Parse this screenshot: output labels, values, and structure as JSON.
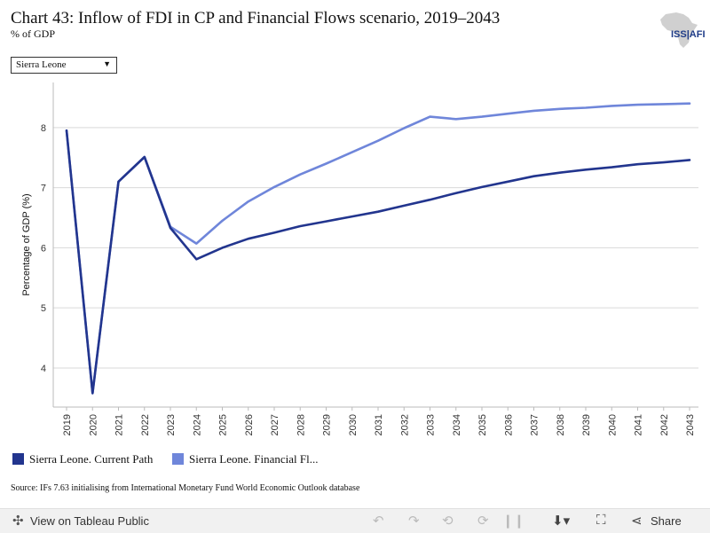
{
  "header": {
    "title": "Chart 43: Inflow of FDI in CP and Financial Flows scenario, 2019–2043",
    "subtitle": "% of GDP",
    "logo_text": "ISS|AFI"
  },
  "filter": {
    "selected": "Sierra Leone",
    "arrow_icon": "▼"
  },
  "chart_data": {
    "type": "line",
    "x": [
      2019,
      2020,
      2021,
      2022,
      2023,
      2024,
      2025,
      2026,
      2027,
      2028,
      2029,
      2030,
      2031,
      2032,
      2033,
      2034,
      2035,
      2036,
      2037,
      2038,
      2039,
      2040,
      2041,
      2042,
      2043
    ],
    "ylabel": "Percentage of GDP (%)",
    "xlabel": "",
    "ylim": [
      3.35,
      8.75
    ],
    "yticks": [
      4,
      5,
      6,
      7,
      8
    ],
    "grid": "horizontal",
    "legend_position": "bottom",
    "series": [
      {
        "name": "Sierra Leone. Current Path",
        "color": "#22358e",
        "values": [
          7.95,
          3.58,
          7.1,
          7.51,
          6.33,
          5.81,
          6.0,
          6.15,
          6.25,
          6.36,
          6.44,
          6.52,
          6.6,
          6.7,
          6.8,
          6.91,
          7.01,
          7.1,
          7.19,
          7.25,
          7.3,
          7.34,
          7.39,
          7.42,
          7.46
        ]
      },
      {
        "name": "Sierra Leone. Financial Fl...",
        "color": "#6f86da",
        "values": [
          7.95,
          3.58,
          7.1,
          7.51,
          6.35,
          6.07,
          6.45,
          6.77,
          7.01,
          7.22,
          7.4,
          7.59,
          7.78,
          7.99,
          8.18,
          8.14,
          8.18,
          8.23,
          8.28,
          8.31,
          8.33,
          8.36,
          8.38,
          8.39,
          8.4
        ]
      }
    ]
  },
  "source": "Source: IFs 7.63 initialising from International Monetary Fund World Economic Outlook database",
  "footer": {
    "view_label": "View on Tableau Public",
    "share_label": "Share",
    "icons": {
      "view": "tableau-icon",
      "undo": "undo-icon",
      "redo": "redo-icon",
      "revert": "revert-icon",
      "pause": "pause-icon",
      "download": "download-icon",
      "fullscreen": "fullscreen-icon",
      "share": "share-icon"
    }
  }
}
